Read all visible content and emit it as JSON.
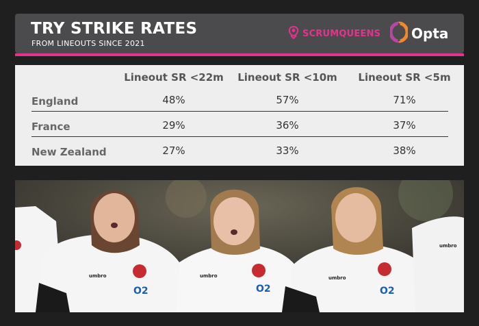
{
  "header": {
    "title": "TRY STRIKE RATES",
    "subtitle": "FROM LINEOUTS SINCE 2021",
    "brands": [
      {
        "name": "SCRUMQUEENS",
        "icon": "rose-logo-icon",
        "color": "#e3338b"
      },
      {
        "name": "Opta",
        "icon": "opta-logo-icon",
        "color": "#ffffff"
      }
    ],
    "accent_color": "#e3338b"
  },
  "table": {
    "columns": [
      "Lineout SR <22m",
      "Lineout SR <10m",
      "Lineout SR <5m"
    ],
    "rows": [
      {
        "team": "England",
        "values": [
          "48%",
          "57%",
          "71%"
        ]
      },
      {
        "team": "France",
        "values": [
          "29%",
          "36%",
          "37%"
        ]
      },
      {
        "team": "New Zealand",
        "values": [
          "27%",
          "33%",
          "38%"
        ]
      }
    ]
  },
  "photo": {
    "kit_brand": "umbro",
    "sponsor": "O2"
  }
}
